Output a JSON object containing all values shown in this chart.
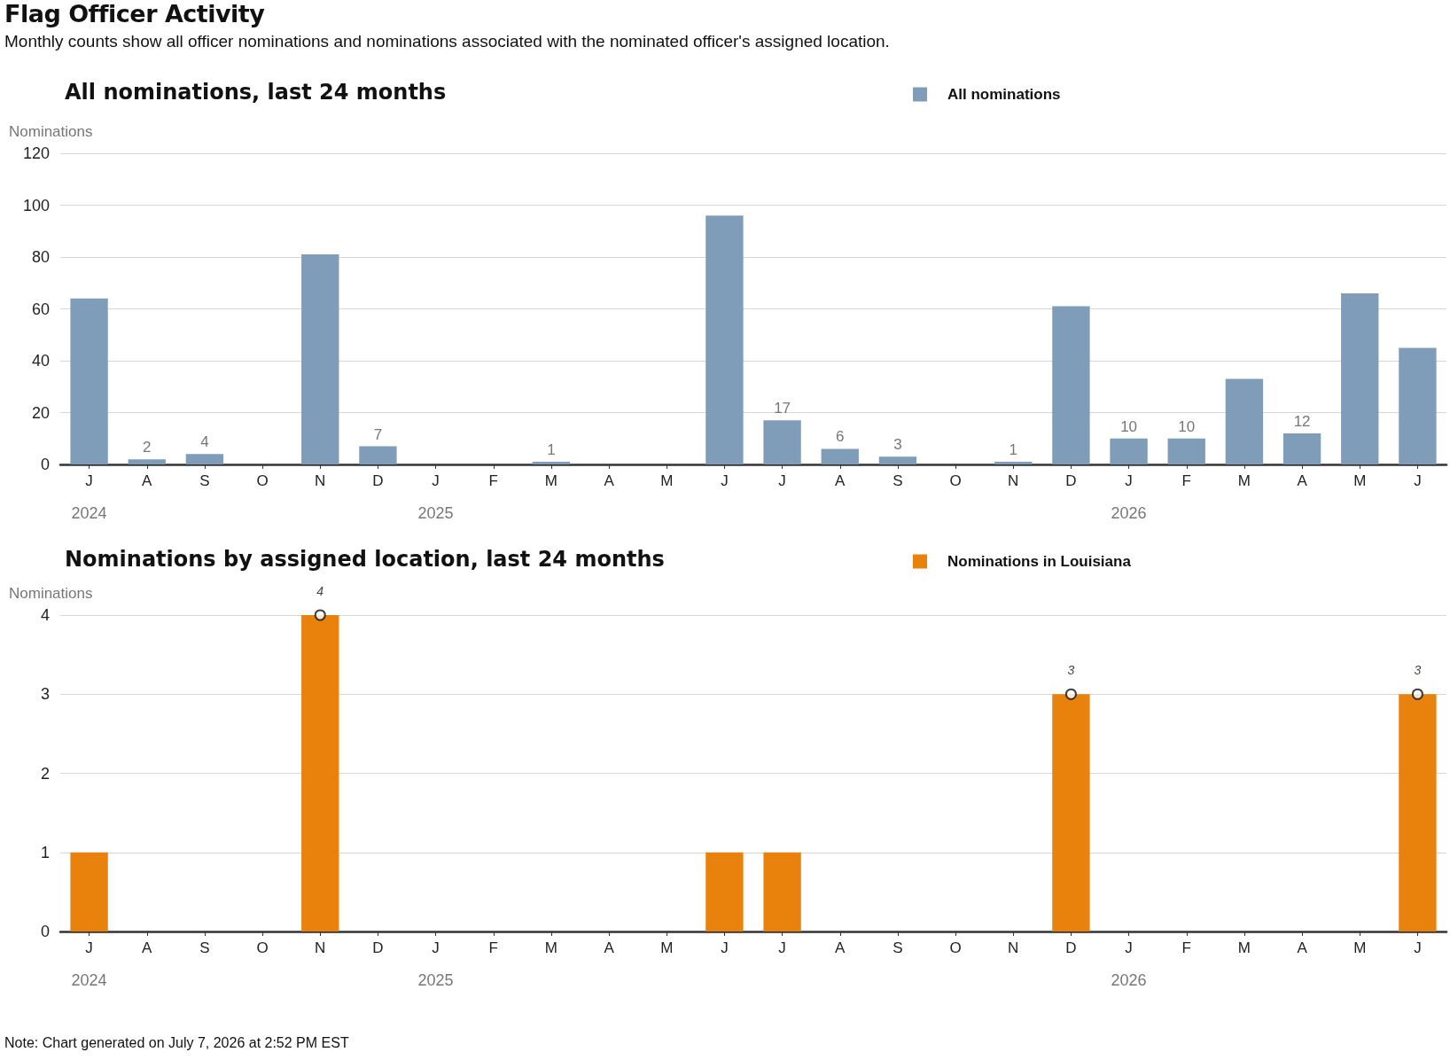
{
  "chart_data": [
    {
      "type": "bar",
      "title": "All nominations, last 24 months",
      "ylabel": "Nominations",
      "annotations": [
        "Flag Officer Activity",
        "Monthly counts show all officer nominations and nominations associated with the nominated officer's assigned location."
      ],
      "categories": [
        "J\n2024",
        "A",
        "S",
        "O",
        "N",
        "D",
        "J\n2025",
        "F",
        "M",
        "A",
        "M",
        "J",
        "J",
        "A",
        "S",
        "O",
        "N",
        "D",
        "J\n2026",
        "F",
        "M",
        "A",
        "M",
        "J"
      ],
      "series": [
        {
          "name": "All nominations",
          "color": "#7f9db9",
          "values": [
            64,
            2,
            4,
            0,
            81,
            7,
            0,
            0,
            1,
            0,
            0,
            96,
            17,
            6,
            3,
            0,
            1,
            61,
            10,
            10,
            33,
            12,
            66,
            45
          ],
          "value_labels": [
            null,
            "2",
            "4",
            null,
            null,
            "7",
            null,
            null,
            "1",
            null,
            null,
            null,
            "17",
            "6",
            "3",
            null,
            "1",
            null,
            "10",
            "10",
            null,
            "12",
            null,
            null
          ]
        }
      ],
      "ylim": [
        0,
        120
      ],
      "yticks": [
        0,
        20,
        40,
        60,
        80,
        100,
        120
      ],
      "grid": "y",
      "legend": "top"
    },
    {
      "type": "bar",
      "title": "Nominations by assigned location, last 24 months",
      "ylabel": "Nominations",
      "annotations": [
        "Note: Chart generated on July 7, 2026 at 2:52 PM EST"
      ],
      "categories": [
        "J\n2024",
        "A",
        "S",
        "O",
        "N",
        "D",
        "J\n2025",
        "F",
        "M",
        "A",
        "M",
        "J",
        "J",
        "A",
        "S",
        "O",
        "N",
        "D",
        "J\n2026",
        "F",
        "M",
        "A",
        "M",
        "J"
      ],
      "series": [
        {
          "name": "Nominations in Louisiana",
          "color": "#e8820c",
          "values": [
            1,
            0,
            0,
            0,
            4,
            0,
            0,
            0,
            0,
            0,
            0,
            1,
            1,
            0,
            0,
            0,
            0,
            3,
            0,
            0,
            0,
            0,
            0,
            3
          ]
        },
        {
          "type": "scatter",
          "color": "#111111",
          "marker": "circle",
          "values": [
            null,
            null,
            null,
            null,
            4,
            null,
            null,
            null,
            null,
            null,
            null,
            null,
            null,
            null,
            null,
            null,
            null,
            3,
            null,
            null,
            null,
            null,
            null,
            3
          ],
          "value_labels": [
            null,
            null,
            null,
            null,
            "4",
            null,
            null,
            null,
            null,
            null,
            null,
            null,
            null,
            null,
            null,
            null,
            null,
            "3",
            null,
            null,
            null,
            null,
            null,
            "3"
          ]
        }
      ],
      "ylim": [
        0,
        4
      ],
      "yticks": [
        0,
        1,
        2,
        3,
        4
      ],
      "grid": "y",
      "legend": "top"
    }
  ]
}
